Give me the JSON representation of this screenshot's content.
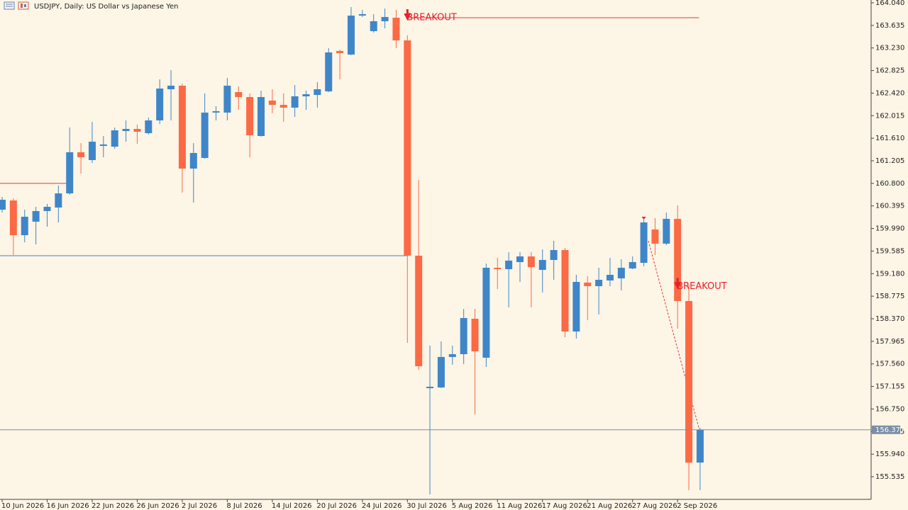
{
  "chart_data": {
    "type": "candlestick",
    "title": "USDJPY, Daily:  US Dollar vs Japanese Yen",
    "categories": [
      "10 Jun 2026",
      null,
      null,
      null,
      "16 Jun 2026",
      null,
      null,
      null,
      "22 Jun 2026",
      null,
      null,
      null,
      "26 Jun 2026",
      null,
      null,
      null,
      "2 Jul 2026",
      null,
      null,
      null,
      "8 Jul 2026",
      null,
      null,
      null,
      "14 Jul 2026",
      null,
      null,
      null,
      "20 Jul 2026",
      null,
      null,
      null,
      "24 Jul 2026",
      null,
      null,
      null,
      "30 Jul 2026",
      null,
      null,
      null,
      "5 Aug 2026",
      null,
      null,
      null,
      "11 Aug 2026",
      null,
      null,
      null,
      "17 Aug 2026",
      null,
      null,
      null,
      "21 Aug 2026",
      null,
      null,
      null,
      "27 Aug 2026",
      null,
      null,
      null,
      "2 Sep 2026",
      null,
      null
    ],
    "open": [
      160.328,
      160.493,
      159.87,
      160.112,
      160.303,
      160.366,
      160.62,
      161.358,
      161.218,
      161.472,
      161.459,
      161.739,
      161.777,
      161.701,
      161.93,
      162.489,
      162.553,
      161.065,
      161.256,
      162.07,
      162.07,
      162.438,
      162.349,
      161.65,
      162.286,
      162.209,
      162.159,
      162.362,
      162.387,
      162.451,
      163.176,
      163.112,
      163.811,
      163.532,
      163.71,
      163.773,
      163.366,
      159.502,
      157.124,
      157.137,
      157.684,
      157.734,
      158.37,
      157.671,
      159.285,
      159.26,
      159.387,
      159.489,
      159.247,
      159.425,
      159.603,
      158.141,
      159.019,
      158.955,
      159.057,
      159.095,
      159.273,
      159.374,
      159.972,
      159.718,
      160.163,
      158.688,
      155.789
    ],
    "high": [
      160.557,
      160.531,
      160.328,
      160.379,
      160.43,
      160.76,
      161.803,
      161.523,
      161.904,
      161.65,
      161.803,
      161.93,
      161.854,
      161.981,
      162.667,
      162.832,
      162.591,
      161.523,
      162.413,
      162.184,
      162.693,
      162.54,
      162.413,
      162.464,
      162.489,
      162.413,
      162.565,
      162.464,
      162.616,
      163.227,
      163.201,
      163.964,
      163.913,
      163.837,
      163.938,
      163.913,
      163.455,
      160.862,
      157.887,
      157.963,
      157.887,
      158.548,
      158.548,
      159.362,
      159.463,
      159.565,
      159.565,
      159.565,
      159.616,
      159.769,
      159.641,
      159.158,
      159.133,
      159.285,
      159.463,
      159.438,
      159.489,
      160.15,
      160.175,
      160.277,
      160.404,
      158.98,
      156.412
    ],
    "low": [
      160.277,
      159.514,
      159.743,
      159.705,
      160.023,
      160.099,
      160.595,
      160.976,
      161.167,
      161.269,
      161.421,
      161.548,
      161.51,
      161.676,
      161.866,
      161.93,
      160.633,
      160.455,
      161.243,
      161.93,
      161.93,
      162.12,
      161.269,
      161.637,
      162.057,
      161.904,
      161.993,
      162.12,
      162.159,
      162.438,
      162.667,
      163.099,
      163.786,
      163.506,
      163.582,
      163.227,
      157.938,
      157.455,
      155.217,
      157.124,
      157.544,
      157.557,
      156.654,
      157.506,
      158.904,
      158.574,
      159.031,
      158.574,
      158.841,
      159.069,
      158.04,
      158.014,
      158.345,
      158.446,
      158.955,
      158.879,
      159.26,
      159.311,
      159.514,
      159.692,
      158.192,
      155.294,
      155.294
    ],
    "close": [
      160.506,
      159.87,
      160.201,
      160.303,
      160.379,
      160.62,
      161.358,
      161.269,
      161.548,
      161.498,
      161.752,
      161.777,
      161.726,
      161.93,
      162.502,
      162.553,
      161.065,
      161.345,
      162.07,
      162.095,
      162.553,
      162.349,
      161.663,
      162.349,
      162.209,
      162.159,
      162.362,
      162.4,
      162.489,
      163.15,
      163.138,
      163.811,
      163.837,
      163.71,
      163.786,
      163.366,
      159.502,
      157.518,
      157.15,
      157.684,
      157.734,
      158.383,
      157.785,
      159.285,
      159.26,
      159.413,
      159.489,
      159.298,
      159.425,
      159.603,
      158.141,
      159.031,
      158.955,
      159.069,
      159.158,
      159.285,
      159.387,
      160.099,
      159.718,
      160.163,
      158.688,
      155.789,
      156.377
    ],
    "up_color": "#3f86c8",
    "down_color": "#fb6a45",
    "ylim": [
      155.128,
      164.091
    ],
    "yticks": [
      {
        "value": 164.04,
        "label": "164.040"
      },
      {
        "value": 163.635,
        "label": "163.635"
      },
      {
        "value": 163.23,
        "label": "163.230"
      },
      {
        "value": 162.825,
        "label": "162.825"
      },
      {
        "value": 162.42,
        "label": "162.420"
      },
      {
        "value": 162.015,
        "label": "162.015"
      },
      {
        "value": 161.61,
        "label": "161.610"
      },
      {
        "value": 161.205,
        "label": "161.205"
      },
      {
        "value": 160.8,
        "label": "160.800"
      },
      {
        "value": 160.395,
        "label": "160.395"
      },
      {
        "value": 159.99,
        "label": "159.990"
      },
      {
        "value": 159.585,
        "label": "159.585"
      },
      {
        "value": 159.18,
        "label": "159.180"
      },
      {
        "value": 158.775,
        "label": "158.775"
      },
      {
        "value": 158.37,
        "label": "158.370"
      },
      {
        "value": 157.965,
        "label": "157.965"
      },
      {
        "value": 157.56,
        "label": "157.560"
      },
      {
        "value": 157.155,
        "label": "157.155"
      },
      {
        "value": 156.75,
        "label": "156.750"
      },
      {
        "value": 156.345,
        "label": "156.345"
      },
      {
        "value": 155.94,
        "label": "155.940"
      },
      {
        "value": 155.535,
        "label": "155.535"
      }
    ],
    "levels": [
      {
        "value": 160.8,
        "color": "#e03c3c"
      },
      {
        "value": 159.502,
        "color": "#3f86c8"
      },
      {
        "value": 163.773,
        "color": "#e03c3c"
      }
    ],
    "annotations": [
      {
        "text": "BREAKOUT",
        "value": 163.773
      },
      {
        "text": "BREAKOUT",
        "value": 158.95
      }
    ],
    "last_price": {
      "value": 156.377,
      "label": "156.377"
    }
  }
}
